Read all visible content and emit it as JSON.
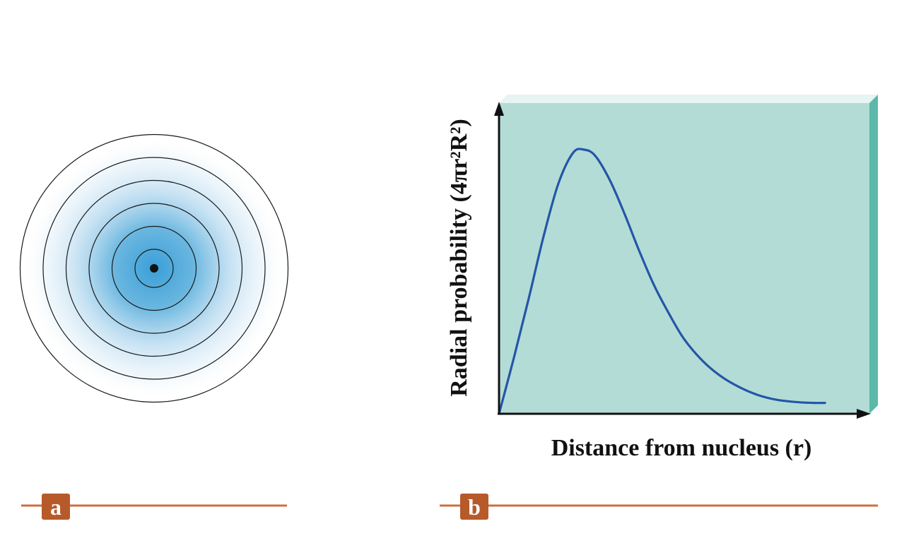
{
  "figure": {
    "panel_a_label": "a",
    "panel_b_label": "b",
    "accent_color": "#cf6f3f",
    "tag_color": "#b65a2a"
  },
  "orbital_diagram": {
    "shell_count": 6,
    "cloud_color": "#3a9fd8",
    "nucleus_color": "#111111"
  },
  "chart_data": {
    "type": "line",
    "title": "",
    "xlabel": "Distance from nucleus (r)",
    "ylabel": "Radial probability (4πr²R²)",
    "xlim": [
      0,
      10
    ],
    "ylim": [
      0,
      10
    ],
    "x": [
      0,
      0.4,
      0.8,
      1.2,
      1.6,
      2.0,
      2.3,
      2.6,
      3.0,
      3.4,
      3.8,
      4.2,
      4.6,
      5.0,
      5.5,
      6.0,
      6.5,
      7.0,
      7.5,
      8.0,
      8.5,
      8.8
    ],
    "series": [
      {
        "values": [
          0,
          1.8,
          3.7,
          5.7,
          7.4,
          8.4,
          8.5,
          8.3,
          7.5,
          6.4,
          5.2,
          4.1,
          3.2,
          2.4,
          1.7,
          1.2,
          0.85,
          0.6,
          0.45,
          0.38,
          0.35,
          0.35
        ]
      }
    ],
    "grid": false,
    "plot_background": "#b4dcd7",
    "plot_edge": "#5ab9a8",
    "line_color": "#2456a6"
  }
}
